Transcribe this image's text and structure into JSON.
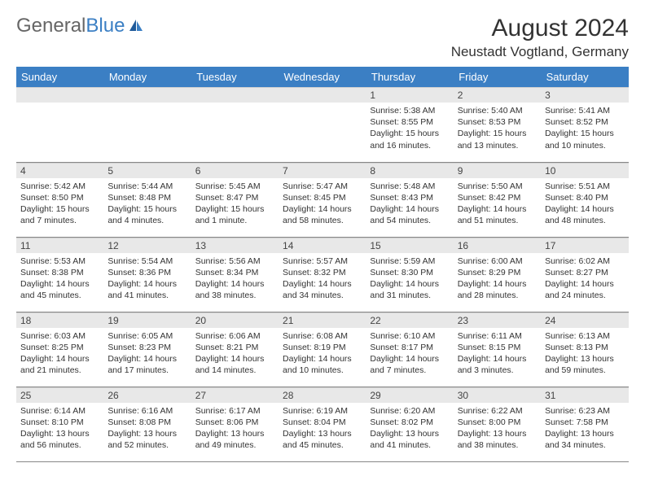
{
  "brand": {
    "part1": "General",
    "part2": "Blue"
  },
  "title": "August 2024",
  "location": "Neustadt Vogtland, Germany",
  "calendar_type": "month-grid",
  "header_bg": "#3b7fc4",
  "header_fg": "#ffffff",
  "daynum_bg": "#e8e8e8",
  "grid_border": "#888888",
  "background_color": "#ffffff",
  "text_color": "#333333",
  "font_family": "Arial",
  "title_fontsize": 30,
  "location_fontsize": 17,
  "header_fontsize": 13,
  "cell_fontsize": 10.5,
  "weekdays": [
    "Sunday",
    "Monday",
    "Tuesday",
    "Wednesday",
    "Thursday",
    "Friday",
    "Saturday"
  ],
  "weeks": [
    [
      null,
      null,
      null,
      null,
      {
        "n": "1",
        "sr": "Sunrise: 5:38 AM",
        "ss": "Sunset: 8:55 PM",
        "dl": "Daylight: 15 hours and 16 minutes."
      },
      {
        "n": "2",
        "sr": "Sunrise: 5:40 AM",
        "ss": "Sunset: 8:53 PM",
        "dl": "Daylight: 15 hours and 13 minutes."
      },
      {
        "n": "3",
        "sr": "Sunrise: 5:41 AM",
        "ss": "Sunset: 8:52 PM",
        "dl": "Daylight: 15 hours and 10 minutes."
      }
    ],
    [
      {
        "n": "4",
        "sr": "Sunrise: 5:42 AM",
        "ss": "Sunset: 8:50 PM",
        "dl": "Daylight: 15 hours and 7 minutes."
      },
      {
        "n": "5",
        "sr": "Sunrise: 5:44 AM",
        "ss": "Sunset: 8:48 PM",
        "dl": "Daylight: 15 hours and 4 minutes."
      },
      {
        "n": "6",
        "sr": "Sunrise: 5:45 AM",
        "ss": "Sunset: 8:47 PM",
        "dl": "Daylight: 15 hours and 1 minute."
      },
      {
        "n": "7",
        "sr": "Sunrise: 5:47 AM",
        "ss": "Sunset: 8:45 PM",
        "dl": "Daylight: 14 hours and 58 minutes."
      },
      {
        "n": "8",
        "sr": "Sunrise: 5:48 AM",
        "ss": "Sunset: 8:43 PM",
        "dl": "Daylight: 14 hours and 54 minutes."
      },
      {
        "n": "9",
        "sr": "Sunrise: 5:50 AM",
        "ss": "Sunset: 8:42 PM",
        "dl": "Daylight: 14 hours and 51 minutes."
      },
      {
        "n": "10",
        "sr": "Sunrise: 5:51 AM",
        "ss": "Sunset: 8:40 PM",
        "dl": "Daylight: 14 hours and 48 minutes."
      }
    ],
    [
      {
        "n": "11",
        "sr": "Sunrise: 5:53 AM",
        "ss": "Sunset: 8:38 PM",
        "dl": "Daylight: 14 hours and 45 minutes."
      },
      {
        "n": "12",
        "sr": "Sunrise: 5:54 AM",
        "ss": "Sunset: 8:36 PM",
        "dl": "Daylight: 14 hours and 41 minutes."
      },
      {
        "n": "13",
        "sr": "Sunrise: 5:56 AM",
        "ss": "Sunset: 8:34 PM",
        "dl": "Daylight: 14 hours and 38 minutes."
      },
      {
        "n": "14",
        "sr": "Sunrise: 5:57 AM",
        "ss": "Sunset: 8:32 PM",
        "dl": "Daylight: 14 hours and 34 minutes."
      },
      {
        "n": "15",
        "sr": "Sunrise: 5:59 AM",
        "ss": "Sunset: 8:30 PM",
        "dl": "Daylight: 14 hours and 31 minutes."
      },
      {
        "n": "16",
        "sr": "Sunrise: 6:00 AM",
        "ss": "Sunset: 8:29 PM",
        "dl": "Daylight: 14 hours and 28 minutes."
      },
      {
        "n": "17",
        "sr": "Sunrise: 6:02 AM",
        "ss": "Sunset: 8:27 PM",
        "dl": "Daylight: 14 hours and 24 minutes."
      }
    ],
    [
      {
        "n": "18",
        "sr": "Sunrise: 6:03 AM",
        "ss": "Sunset: 8:25 PM",
        "dl": "Daylight: 14 hours and 21 minutes."
      },
      {
        "n": "19",
        "sr": "Sunrise: 6:05 AM",
        "ss": "Sunset: 8:23 PM",
        "dl": "Daylight: 14 hours and 17 minutes."
      },
      {
        "n": "20",
        "sr": "Sunrise: 6:06 AM",
        "ss": "Sunset: 8:21 PM",
        "dl": "Daylight: 14 hours and 14 minutes."
      },
      {
        "n": "21",
        "sr": "Sunrise: 6:08 AM",
        "ss": "Sunset: 8:19 PM",
        "dl": "Daylight: 14 hours and 10 minutes."
      },
      {
        "n": "22",
        "sr": "Sunrise: 6:10 AM",
        "ss": "Sunset: 8:17 PM",
        "dl": "Daylight: 14 hours and 7 minutes."
      },
      {
        "n": "23",
        "sr": "Sunrise: 6:11 AM",
        "ss": "Sunset: 8:15 PM",
        "dl": "Daylight: 14 hours and 3 minutes."
      },
      {
        "n": "24",
        "sr": "Sunrise: 6:13 AM",
        "ss": "Sunset: 8:13 PM",
        "dl": "Daylight: 13 hours and 59 minutes."
      }
    ],
    [
      {
        "n": "25",
        "sr": "Sunrise: 6:14 AM",
        "ss": "Sunset: 8:10 PM",
        "dl": "Daylight: 13 hours and 56 minutes."
      },
      {
        "n": "26",
        "sr": "Sunrise: 6:16 AM",
        "ss": "Sunset: 8:08 PM",
        "dl": "Daylight: 13 hours and 52 minutes."
      },
      {
        "n": "27",
        "sr": "Sunrise: 6:17 AM",
        "ss": "Sunset: 8:06 PM",
        "dl": "Daylight: 13 hours and 49 minutes."
      },
      {
        "n": "28",
        "sr": "Sunrise: 6:19 AM",
        "ss": "Sunset: 8:04 PM",
        "dl": "Daylight: 13 hours and 45 minutes."
      },
      {
        "n": "29",
        "sr": "Sunrise: 6:20 AM",
        "ss": "Sunset: 8:02 PM",
        "dl": "Daylight: 13 hours and 41 minutes."
      },
      {
        "n": "30",
        "sr": "Sunrise: 6:22 AM",
        "ss": "Sunset: 8:00 PM",
        "dl": "Daylight: 13 hours and 38 minutes."
      },
      {
        "n": "31",
        "sr": "Sunrise: 6:23 AM",
        "ss": "Sunset: 7:58 PM",
        "dl": "Daylight: 13 hours and 34 minutes."
      }
    ]
  ]
}
